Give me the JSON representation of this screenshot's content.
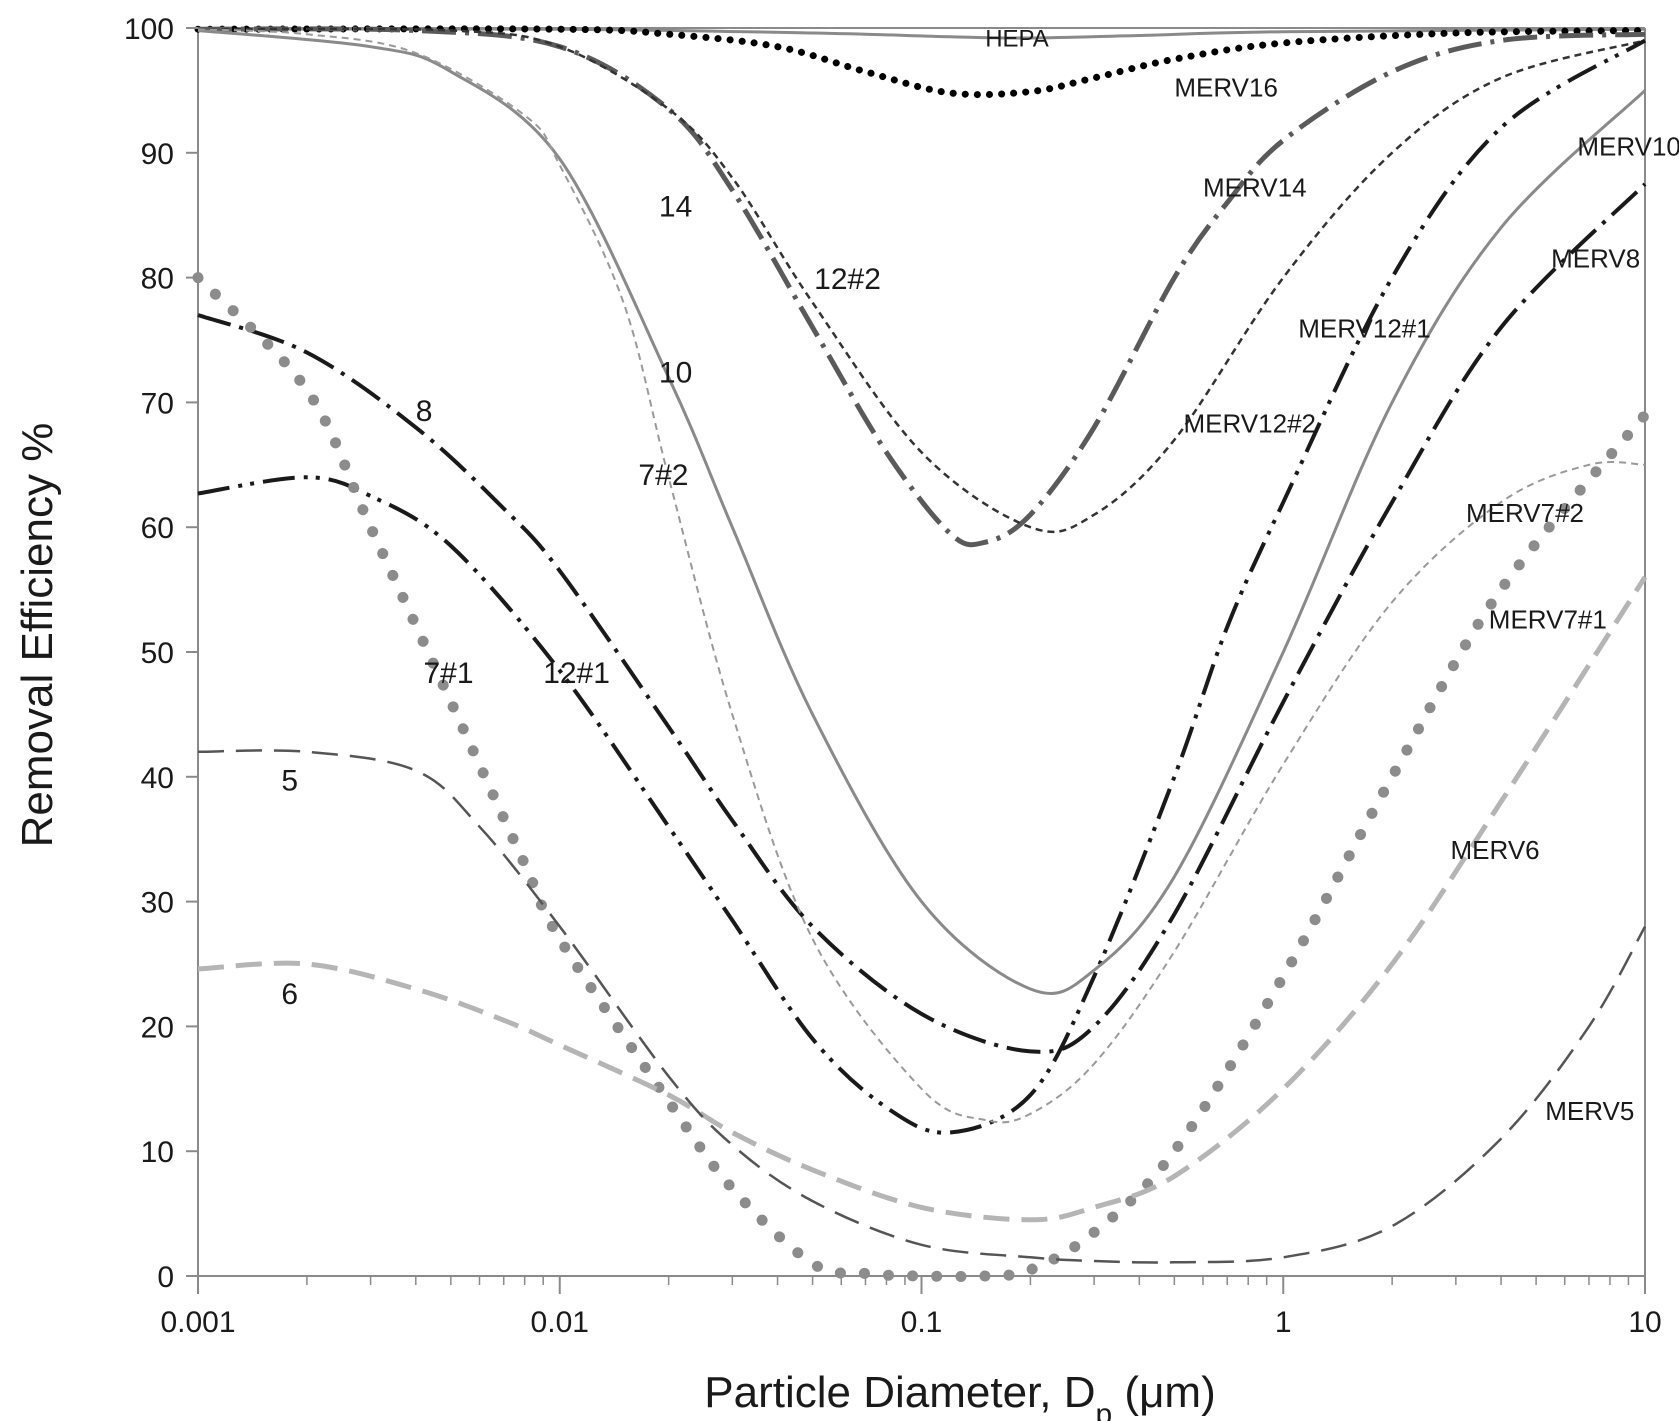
{
  "chart_data": {
    "type": "line",
    "title": "",
    "xlabel": {
      "main": "Particle Diameter,  D",
      "sub": "p",
      "unit": " (μm)"
    },
    "ylabel": "Removal Efficiency %",
    "xscale": "log",
    "xlim": [
      0.001,
      10
    ],
    "ylim": [
      0,
      100
    ],
    "xticks": [
      0.001,
      0.01,
      0.1,
      1,
      10
    ],
    "xtick_labels": [
      "0.001",
      "0.01",
      "0.1",
      "1",
      "10"
    ],
    "yticks": [
      0,
      10,
      20,
      30,
      40,
      50,
      60,
      70,
      80,
      90,
      100
    ],
    "ytick_labels": [
      "0",
      "10",
      "20",
      "30",
      "40",
      "50",
      "60",
      "70",
      "80",
      "90",
      "100"
    ],
    "grid": false,
    "legend": "none",
    "series": [
      {
        "id": "hepa",
        "name": "HEPA",
        "color": "#8a8a8a",
        "width": 3,
        "dash": "solid",
        "x": [
          0.001,
          0.01,
          0.05,
          0.12,
          0.2,
          0.4,
          1,
          10
        ],
        "y": [
          99.9,
          99.9,
          99.6,
          99.3,
          99.2,
          99.4,
          99.7,
          99.9
        ]
      },
      {
        "id": "merv16",
        "name": "MERV16",
        "color": "#000000",
        "width": 7,
        "dash": "dotted",
        "x": [
          0.001,
          0.01,
          0.02,
          0.04,
          0.07,
          0.12,
          0.2,
          0.3,
          0.5,
          1,
          3,
          10
        ],
        "y": [
          99.9,
          99.9,
          99.5,
          98.5,
          96.5,
          94.8,
          94.9,
          96,
          97.5,
          98.8,
          99.6,
          99.8
        ]
      },
      {
        "id": "merv14",
        "name": "MERV14",
        "color": "#5a5a5a",
        "width": 5,
        "dash": "dashdot",
        "x": [
          0.001,
          0.004,
          0.01,
          0.02,
          0.03,
          0.05,
          0.08,
          0.12,
          0.15,
          0.2,
          0.3,
          0.5,
          0.7,
          1,
          2,
          4,
          10
        ],
        "y": [
          99.9,
          99.8,
          98.5,
          93.5,
          87,
          76,
          66,
          59.5,
          58.8,
          61,
          68,
          80,
          86,
          91,
          96.5,
          99,
          99.5
        ]
      },
      {
        "id": "merv12-2",
        "name": "MERV12#2",
        "color": "#333333",
        "width": 2.5,
        "dash": "shortdash",
        "x": [
          0.001,
          0.005,
          0.01,
          0.02,
          0.03,
          0.05,
          0.1,
          0.2,
          0.3,
          0.5,
          1,
          2,
          4,
          10
        ],
        "y": [
          99.9,
          99.8,
          98.5,
          93.5,
          88,
          78,
          66,
          60,
          61,
          67,
          80,
          90,
          96,
          99
        ]
      },
      {
        "id": "merv12-1",
        "name": "MERV12#1",
        "color": "#1a1a1a",
        "width": 4,
        "dash": "dashdotdot",
        "x": [
          0.001,
          0.002,
          0.003,
          0.005,
          0.01,
          0.02,
          0.03,
          0.05,
          0.08,
          0.12,
          0.2,
          0.3,
          0.5,
          0.7,
          1,
          2,
          4,
          10
        ],
        "y": [
          62.7,
          64,
          62.5,
          58.5,
          48.5,
          36,
          28.5,
          19,
          13.5,
          11.5,
          14.5,
          24,
          40,
          52,
          62,
          80,
          92,
          99
        ]
      },
      {
        "id": "merv10",
        "name": "MERV10",
        "color": "#8a8a8a",
        "width": 3,
        "dash": "solid",
        "x": [
          0.001,
          0.003,
          0.005,
          0.01,
          0.02,
          0.03,
          0.05,
          0.1,
          0.2,
          0.3,
          0.5,
          1,
          2,
          4,
          10
        ],
        "y": [
          99.8,
          98.5,
          96.5,
          89.5,
          72,
          60,
          45,
          30,
          23,
          24.5,
          32,
          50,
          70,
          84,
          95
        ]
      },
      {
        "id": "merv8",
        "name": "MERV8",
        "color": "#1a1a1a",
        "width": 4,
        "dash": "dashdot",
        "x": [
          0.001,
          0.002,
          0.004,
          0.007,
          0.01,
          0.02,
          0.03,
          0.05,
          0.1,
          0.2,
          0.3,
          0.5,
          1,
          2,
          4,
          10
        ],
        "y": [
          77,
          74,
          68,
          61.5,
          56.5,
          44,
          36.5,
          28,
          21,
          18,
          20,
          29,
          46,
          62,
          76,
          87.5
        ]
      },
      {
        "id": "merv7-2",
        "name": "MERV7#2",
        "color": "#9a9a9a",
        "width": 2,
        "dash": "shortdash",
        "x": [
          0.001,
          0.002,
          0.004,
          0.008,
          0.01,
          0.015,
          0.02,
          0.03,
          0.05,
          0.1,
          0.15,
          0.2,
          0.3,
          0.5,
          1,
          2,
          4,
          7,
          10
        ],
        "y": [
          99.9,
          99.5,
          98,
          93,
          89,
          78,
          64,
          45,
          27,
          15,
          12.5,
          13,
          17,
          26,
          41,
          54,
          62,
          65,
          65
        ]
      },
      {
        "id": "merv7-1",
        "name": "MERV7#1",
        "color": "#8c8c8c",
        "width": 8,
        "dash": "dots",
        "x": [
          0.001,
          0.002,
          0.003,
          0.005,
          0.008,
          0.01,
          0.02,
          0.03,
          0.05,
          0.07,
          0.1,
          0.15,
          0.2,
          0.3,
          0.5,
          1,
          2,
          4,
          10
        ],
        "y": [
          80,
          71,
          60,
          46,
          33,
          27,
          14,
          7,
          1,
          0.2,
          0,
          0,
          0.5,
          3.5,
          10,
          24,
          40,
          55,
          69
        ]
      },
      {
        "id": "merv6",
        "name": "MERV6",
        "color": "#b5b5b5",
        "width": 5,
        "dash": "longdash",
        "x": [
          0.001,
          0.002,
          0.004,
          0.007,
          0.01,
          0.02,
          0.03,
          0.05,
          0.1,
          0.2,
          0.3,
          0.5,
          1,
          2,
          4,
          10
        ],
        "y": [
          24.6,
          25,
          23,
          20.5,
          18.5,
          14.5,
          11.5,
          8.5,
          5.5,
          4.5,
          5.5,
          8,
          15,
          25,
          38,
          56
        ]
      },
      {
        "id": "merv5",
        "name": "MERV5",
        "color": "#555555",
        "width": 2.5,
        "dash": "longdash",
        "x": [
          0.001,
          0.002,
          0.004,
          0.006,
          0.01,
          0.02,
          0.03,
          0.05,
          0.1,
          0.2,
          0.3,
          0.5,
          1,
          2,
          4,
          7,
          10
        ],
        "y": [
          42,
          42,
          40.5,
          36,
          28,
          16,
          10.5,
          6,
          2.5,
          1.5,
          1.2,
          1.1,
          1.5,
          4,
          11,
          20,
          28
        ]
      }
    ],
    "annotations": [
      {
        "id": "hepa",
        "text": "HEPA",
        "x": 0.15,
        "y": 98.5,
        "size": 24
      },
      {
        "id": "merv16",
        "text": "MERV16",
        "x": 0.5,
        "y": 94.5,
        "size": 26
      },
      {
        "id": "merv14",
        "text": "MERV14",
        "x": 0.6,
        "y": 86.5,
        "size": 26
      },
      {
        "id": "merv10",
        "text": "MERV10",
        "x": 6.5,
        "y": 89.8,
        "size": 26
      },
      {
        "id": "merv8",
        "text": "MERV8",
        "x": 5.5,
        "y": 80.8,
        "size": 26
      },
      {
        "id": "merv12-1",
        "text": "MERV12#1",
        "x": 1.1,
        "y": 75.2,
        "size": 26
      },
      {
        "id": "merv12-2",
        "text": "MERV12#2",
        "x": 0.53,
        "y": 67.6,
        "size": 26
      },
      {
        "id": "merv7-2",
        "text": "MERV7#2",
        "x": 3.2,
        "y": 60.4,
        "size": 26
      },
      {
        "id": "merv7-1",
        "text": "MERV7#1",
        "x": 3.7,
        "y": 51.9,
        "size": 26
      },
      {
        "id": "merv6",
        "text": "MERV6",
        "x": 2.9,
        "y": 33.4,
        "size": 26
      },
      {
        "id": "merv5",
        "text": "MERV5",
        "x": 5.3,
        "y": 12.5,
        "size": 26
      },
      {
        "id": "short-14",
        "text": "14",
        "x": 0.0188,
        "y": 84.9,
        "size": 30
      },
      {
        "id": "short-12-2",
        "text": "12#2",
        "x": 0.0505,
        "y": 79.1,
        "size": 30
      },
      {
        "id": "short-10",
        "text": "10",
        "x": 0.0188,
        "y": 71.6,
        "size": 30
      },
      {
        "id": "short-8",
        "text": "8",
        "x": 0.004,
        "y": 68.5,
        "size": 30
      },
      {
        "id": "short-7-2",
        "text": "7#2",
        "x": 0.0165,
        "y": 63.4,
        "size": 30
      },
      {
        "id": "short-7-1",
        "text": "7#1",
        "x": 0.0042,
        "y": 47.5,
        "size": 30
      },
      {
        "id": "short-12-1",
        "text": "12#1",
        "x": 0.009,
        "y": 47.5,
        "size": 30
      },
      {
        "id": "short-5",
        "text": "5",
        "x": 0.0017,
        "y": 38.9,
        "size": 30
      },
      {
        "id": "short-6",
        "text": "6",
        "x": 0.0017,
        "y": 21.8,
        "size": 30
      }
    ]
  }
}
